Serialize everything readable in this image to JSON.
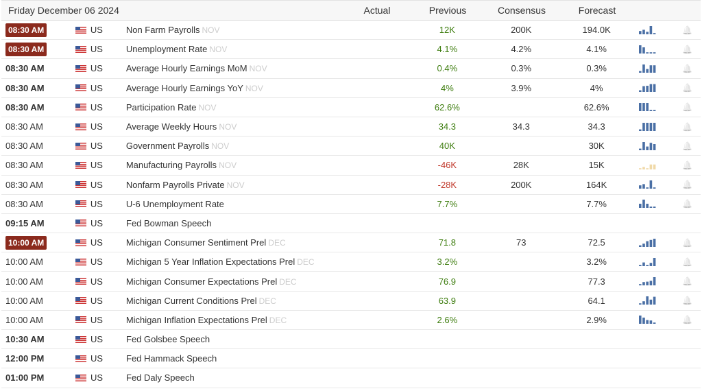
{
  "header": {
    "date": "Friday December 06 2024",
    "actual": "Actual",
    "previous": "Previous",
    "consensus": "Consensus",
    "forecast": "Forecast"
  },
  "colors": {
    "badge": "#8b2a1d",
    "positive": "#3e7d0f",
    "negative": "#c0392b",
    "spark": "#4a6fa5",
    "spark_neg": "#f0d9a8"
  },
  "rows": [
    {
      "time": "08:30 AM",
      "style": "badge",
      "country": "US",
      "event": "Non Farm Payrolls",
      "ref": "NOV",
      "actual": "",
      "previous": "12K",
      "prev_color": "green",
      "consensus": "200K",
      "forecast": "194.0K",
      "spark": [
        0.4,
        0.55,
        0.3,
        1.0,
        0.15
      ],
      "spark_neg": false
    },
    {
      "time": "08:30 AM",
      "style": "badge",
      "country": "US",
      "event": "Unemployment Rate",
      "ref": "NOV",
      "actual": "",
      "previous": "4.1%",
      "prev_color": "green",
      "consensus": "4.2%",
      "forecast": "4.1%",
      "spark": [
        1.0,
        0.75,
        0.15,
        0.15,
        0.15
      ],
      "spark_neg": false
    },
    {
      "time": "08:30 AM",
      "style": "bold",
      "country": "US",
      "event": "Average Hourly Earnings MoM",
      "ref": "NOV",
      "actual": "",
      "previous": "0.4%",
      "prev_color": "green",
      "consensus": "0.3%",
      "forecast": "0.3%",
      "spark": [
        0.2,
        1.0,
        0.45,
        0.9,
        0.9
      ],
      "spark_neg": false
    },
    {
      "time": "08:30 AM",
      "style": "bold",
      "country": "US",
      "event": "Average Hourly Earnings YoY",
      "ref": "NOV",
      "actual": "",
      "previous": "4%",
      "prev_color": "green",
      "consensus": "3.9%",
      "forecast": "4%",
      "spark": [
        0.2,
        0.7,
        0.75,
        0.95,
        0.95
      ],
      "spark_neg": false
    },
    {
      "time": "08:30 AM",
      "style": "bold",
      "country": "US",
      "event": "Participation Rate",
      "ref": "NOV",
      "actual": "",
      "previous": "62.6%",
      "prev_color": "green",
      "consensus": "",
      "forecast": "62.6%",
      "spark": [
        1.0,
        1.0,
        1.0,
        0.15,
        0.15
      ],
      "spark_neg": false
    },
    {
      "time": "08:30 AM",
      "style": "normal",
      "country": "US",
      "event": "Average Weekly Hours",
      "ref": "NOV",
      "actual": "",
      "previous": "34.3",
      "prev_color": "green",
      "consensus": "34.3",
      "forecast": "34.3",
      "spark": [
        0.2,
        1.0,
        1.0,
        1.0,
        1.0
      ],
      "spark_neg": false
    },
    {
      "time": "08:30 AM",
      "style": "normal",
      "country": "US",
      "event": "Government Payrolls",
      "ref": "NOV",
      "actual": "",
      "previous": "40K",
      "prev_color": "green",
      "consensus": "",
      "forecast": "30K",
      "spark": [
        0.2,
        1.0,
        0.45,
        0.9,
        0.75
      ],
      "spark_neg": false
    },
    {
      "time": "08:30 AM",
      "style": "normal",
      "country": "US",
      "event": "Manufacturing Payrolls",
      "ref": "NOV",
      "actual": "",
      "previous": "-46K",
      "prev_color": "red",
      "consensus": "28K",
      "forecast": "15K",
      "spark": [
        0.15,
        0.3,
        0.15,
        0.6,
        0.6
      ],
      "spark_neg": true
    },
    {
      "time": "08:30 AM",
      "style": "normal",
      "country": "US",
      "event": "Nonfarm Payrolls Private",
      "ref": "NOV",
      "actual": "",
      "previous": "-28K",
      "prev_color": "red",
      "consensus": "200K",
      "forecast": "164K",
      "spark": [
        0.4,
        0.55,
        0.15,
        1.0,
        0.15
      ],
      "spark_neg": false
    },
    {
      "time": "08:30 AM",
      "style": "normal",
      "country": "US",
      "event": "U-6 Unemployment Rate",
      "ref": "",
      "actual": "",
      "previous": "7.7%",
      "prev_color": "green",
      "consensus": "",
      "forecast": "7.7%",
      "spark": [
        0.5,
        1.0,
        0.5,
        0.15,
        0.15
      ],
      "spark_neg": false
    },
    {
      "time": "09:15 AM",
      "style": "bold",
      "country": "US",
      "event": "Fed Bowman Speech",
      "ref": "",
      "actual": "",
      "previous": "",
      "prev_color": "green",
      "consensus": "",
      "forecast": "",
      "spark": [],
      "spark_neg": false
    },
    {
      "time": "10:00 AM",
      "style": "badge",
      "country": "US",
      "event": "Michigan Consumer Sentiment Prel",
      "ref": "DEC",
      "actual": "",
      "previous": "71.8",
      "prev_color": "green",
      "consensus": "73",
      "forecast": "72.5",
      "spark": [
        0.2,
        0.4,
        0.7,
        0.85,
        1.0
      ],
      "spark_neg": false
    },
    {
      "time": "10:00 AM",
      "style": "normal",
      "country": "US",
      "event": "Michigan 5 Year Inflation Expectations Prel",
      "ref": "DEC",
      "actual": "",
      "previous": "3.2%",
      "prev_color": "green",
      "consensus": "",
      "forecast": "3.2%",
      "spark": [
        0.15,
        0.45,
        0.15,
        0.4,
        1.0
      ],
      "spark_neg": false
    },
    {
      "time": "10:00 AM",
      "style": "normal",
      "country": "US",
      "event": "Michigan Consumer Expectations Prel",
      "ref": "DEC",
      "actual": "",
      "previous": "76.9",
      "prev_color": "green",
      "consensus": "",
      "forecast": "77.3",
      "spark": [
        0.15,
        0.4,
        0.45,
        0.55,
        1.0
      ],
      "spark_neg": false
    },
    {
      "time": "10:00 AM",
      "style": "normal",
      "country": "US",
      "event": "Michigan Current Conditions Prel",
      "ref": "DEC",
      "actual": "",
      "previous": "63.9",
      "prev_color": "green",
      "consensus": "",
      "forecast": "64.1",
      "spark": [
        0.15,
        0.4,
        1.0,
        0.6,
        0.95
      ],
      "spark_neg": false
    },
    {
      "time": "10:00 AM",
      "style": "normal",
      "country": "US",
      "event": "Michigan Inflation Expectations Prel",
      "ref": "DEC",
      "actual": "",
      "previous": "2.6%",
      "prev_color": "green",
      "consensus": "",
      "forecast": "2.9%",
      "spark": [
        1.0,
        0.75,
        0.45,
        0.4,
        0.15
      ],
      "spark_neg": false
    },
    {
      "time": "10:30 AM",
      "style": "bold",
      "country": "US",
      "event": "Fed Golsbee Speech",
      "ref": "",
      "actual": "",
      "previous": "",
      "prev_color": "green",
      "consensus": "",
      "forecast": "",
      "spark": [],
      "spark_neg": false
    },
    {
      "time": "12:00 PM",
      "style": "bold",
      "country": "US",
      "event": "Fed Hammack Speech",
      "ref": "",
      "actual": "",
      "previous": "",
      "prev_color": "green",
      "consensus": "",
      "forecast": "",
      "spark": [],
      "spark_neg": false
    },
    {
      "time": "01:00 PM",
      "style": "bold",
      "country": "US",
      "event": "Fed Daly Speech",
      "ref": "",
      "actual": "",
      "previous": "",
      "prev_color": "green",
      "consensus": "",
      "forecast": "",
      "spark": [],
      "spark_neg": false
    }
  ]
}
